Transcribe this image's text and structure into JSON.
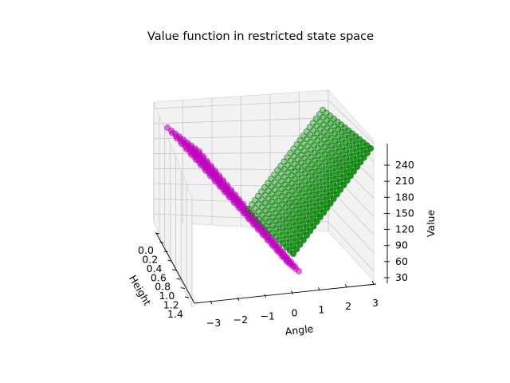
{
  "chart_data": {
    "type": "scatter3d",
    "title": "Value function in restricted state space",
    "xlabel": "Angle",
    "ylabel": "Height",
    "zlabel": "Value",
    "x_ticks": [
      "−3",
      "−2",
      "−1",
      "0",
      "1",
      "2",
      "3"
    ],
    "y_ticks": [
      "0.0",
      "0.2",
      "0.4",
      "0.6",
      "0.8",
      "1.0",
      "1.2",
      "1.4"
    ],
    "z_ticks": [
      "30",
      "60",
      "90",
      "120",
      "150",
      "180",
      "210",
      "240"
    ],
    "xlim": [
      -3.3,
      3.3
    ],
    "ylim": [
      0,
      1.45
    ],
    "zlim": [
      10,
      265
    ],
    "grid": true,
    "series": [
      {
        "color": "#bf00bf",
        "x_range": [
          -3.1,
          0
        ],
        "y_range": [
          0,
          1.45
        ],
        "value_rule": "decreasing with angle toward 0"
      },
      {
        "color": "#008000",
        "x_range": [
          0,
          3.1
        ],
        "y_range": [
          0,
          1.45
        ],
        "value_rule": "increasing with angle away from 0"
      }
    ]
  }
}
